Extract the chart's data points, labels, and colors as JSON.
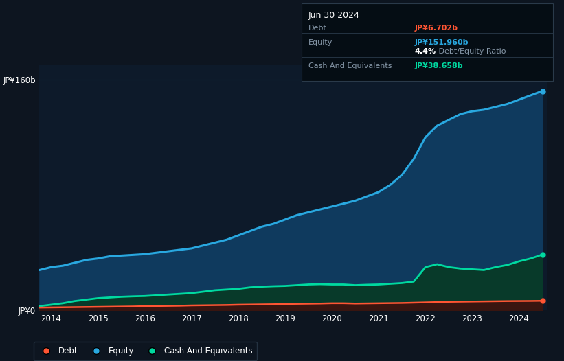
{
  "bg_color": "#0d1520",
  "plot_bg_color": "#0d1a2a",
  "grid_color": "#1e2d3e",
  "title_box": {
    "date": "Jun 30 2024",
    "debt_label": "Debt",
    "debt_value": "JP¥6.702b",
    "debt_color": "#ff5533",
    "equity_label": "Equity",
    "equity_value": "JP¥151.960b",
    "equity_color": "#29a8e0",
    "ratio_value": "4.4%",
    "ratio_text": " Debt/Equity Ratio",
    "cash_label": "Cash And Equivalents",
    "cash_value": "JP¥38.658b",
    "cash_color": "#00d9a0",
    "label_color": "#8899aa",
    "box_bg": "#050d14",
    "box_border": "#2a3a4a"
  },
  "years": [
    2013.75,
    2014.0,
    2014.25,
    2014.5,
    2014.75,
    2015.0,
    2015.25,
    2015.5,
    2015.75,
    2016.0,
    2016.25,
    2016.5,
    2016.75,
    2017.0,
    2017.25,
    2017.5,
    2017.75,
    2018.0,
    2018.25,
    2018.5,
    2018.75,
    2019.0,
    2019.25,
    2019.5,
    2019.75,
    2020.0,
    2020.25,
    2020.5,
    2020.75,
    2021.0,
    2021.25,
    2021.5,
    2021.75,
    2022.0,
    2022.25,
    2022.5,
    2022.75,
    2023.0,
    2023.25,
    2023.5,
    2023.75,
    2024.0,
    2024.25,
    2024.5
  ],
  "equity": [
    28,
    30,
    31,
    33,
    35,
    36,
    37.5,
    38,
    38.5,
    39,
    40,
    41,
    42,
    43,
    45,
    47,
    49,
    52,
    55,
    58,
    60,
    63,
    66,
    68,
    70,
    72,
    74,
    76,
    79,
    82,
    87,
    94,
    105,
    120,
    128,
    132,
    136,
    138,
    139,
    141,
    143,
    146,
    149,
    152
  ],
  "debt": [
    2.0,
    2.1,
    2.2,
    2.3,
    2.4,
    2.5,
    2.6,
    2.7,
    2.8,
    3.0,
    3.1,
    3.2,
    3.3,
    3.5,
    3.6,
    3.7,
    3.8,
    4.0,
    4.1,
    4.2,
    4.3,
    4.5,
    4.6,
    4.7,
    4.8,
    5.0,
    5.0,
    4.8,
    4.9,
    5.0,
    5.1,
    5.2,
    5.4,
    5.6,
    5.8,
    6.0,
    6.1,
    6.2,
    6.3,
    6.4,
    6.5,
    6.55,
    6.6,
    6.7
  ],
  "cash": [
    3.0,
    4.0,
    5.0,
    6.5,
    7.5,
    8.5,
    9.0,
    9.5,
    9.8,
    10.0,
    10.5,
    11.0,
    11.5,
    12.0,
    13.0,
    14.0,
    14.5,
    15.0,
    16.0,
    16.5,
    16.8,
    17.0,
    17.5,
    18.0,
    18.2,
    18.0,
    18.0,
    17.5,
    17.8,
    18.0,
    18.5,
    19.0,
    20.0,
    30.0,
    32.0,
    30.0,
    29.0,
    28.5,
    28.0,
    30.0,
    31.5,
    34.0,
    36.0,
    38.7
  ],
  "equity_color": "#29a8e0",
  "equity_fill": "#0f3a5e",
  "debt_color": "#ff5533",
  "debt_fill": "#3a1510",
  "cash_color": "#00d9a0",
  "cash_fill": "#083a2a",
  "ylim": [
    0,
    170
  ],
  "xlim": [
    2013.75,
    2024.6
  ],
  "ytick_positions": [
    0,
    160
  ],
  "ytick_labels": [
    "JP¥0",
    "JP¥160b"
  ],
  "xticks": [
    2014,
    2015,
    2016,
    2017,
    2018,
    2019,
    2020,
    2021,
    2022,
    2023,
    2024
  ],
  "legend_labels": [
    "Debt",
    "Equity",
    "Cash And Equivalents"
  ],
  "legend_colors": [
    "#ff5533",
    "#29a8e0",
    "#00d9a0"
  ]
}
